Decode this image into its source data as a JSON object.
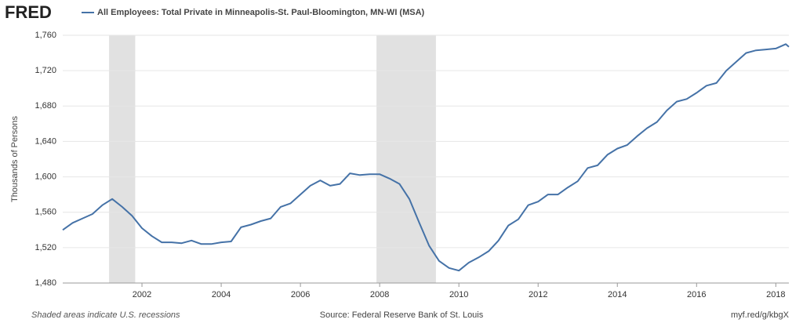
{
  "chart_data": {
    "type": "line",
    "logo": "FRED",
    "title": "All Employees: Total Private in Minneapolis-St. Paul-Bloomington, MN-WI (MSA)",
    "y_label": "Thousands of Persons",
    "note": "Shaded areas indicate U.S. recessions",
    "source": "Source: Federal Reserve Bank of St. Louis",
    "link": "myf.red/g/kbgX",
    "recessions": [
      [
        2001.17,
        2001.83
      ],
      [
        2007.92,
        2009.42
      ]
    ],
    "recession_color": "#e1e1e1",
    "xlim": [
      2000,
      2018.33
    ],
    "xticks": [
      2002,
      2004,
      2006,
      2008,
      2010,
      2012,
      2014,
      2016,
      2018
    ],
    "ylim": [
      1480,
      1760
    ],
    "yticks": [
      {
        "value": 1480,
        "label": "1,480"
      },
      {
        "value": 1520,
        "label": "1,520"
      },
      {
        "value": 1560,
        "label": "1,560"
      },
      {
        "value": 1600,
        "label": "1,600"
      },
      {
        "value": 1640,
        "label": "1,640"
      },
      {
        "value": 1680,
        "label": "1,680"
      },
      {
        "value": 1720,
        "label": "1,720"
      },
      {
        "value": 1760,
        "label": "1,760"
      }
    ],
    "grid": true,
    "x": [
      2000,
      2000.25,
      2000.5,
      2000.75,
      2001,
      2001.25,
      2001.5,
      2001.75,
      2002,
      2002.25,
      2002.5,
      2002.75,
      2003,
      2003.25,
      2003.5,
      2003.75,
      2004,
      2004.25,
      2004.5,
      2004.75,
      2005,
      2005.25,
      2005.5,
      2005.75,
      2006,
      2006.25,
      2006.5,
      2006.75,
      2007,
      2007.25,
      2007.5,
      2007.75,
      2008,
      2008.25,
      2008.5,
      2008.75,
      2009,
      2009.25,
      2009.5,
      2009.75,
      2010,
      2010.25,
      2010.5,
      2010.75,
      2011,
      2011.25,
      2011.5,
      2011.75,
      2012,
      2012.25,
      2012.5,
      2012.75,
      2013,
      2013.25,
      2013.5,
      2013.75,
      2014,
      2014.25,
      2014.5,
      2014.75,
      2015,
      2015.25,
      2015.5,
      2015.75,
      2016,
      2016.25,
      2016.5,
      2016.75,
      2017,
      2017.25,
      2017.5,
      2017.75,
      2018,
      2018.25,
      2018.33
    ],
    "series": [
      {
        "name": "All Employees: Total Private in Minneapolis-St. Paul-Bloomington, MN-WI (MSA)",
        "color": "#4572a7",
        "values": [
          1540,
          1548,
          1553,
          1558,
          1568,
          1575,
          1566,
          1556,
          1542,
          1533,
          1526,
          1526,
          1525,
          1528,
          1524,
          1524,
          1526,
          1527,
          1543,
          1546,
          1550,
          1553,
          1566,
          1570,
          1580,
          1590,
          1596,
          1590,
          1592,
          1604,
          1602,
          1603,
          1603,
          1598,
          1592,
          1575,
          1548,
          1522,
          1505,
          1497,
          1494,
          1503,
          1509,
          1516,
          1528,
          1545,
          1552,
          1568,
          1572,
          1580,
          1580,
          1588,
          1595,
          1610,
          1613,
          1625,
          1632,
          1636,
          1646,
          1655,
          1662,
          1675,
          1685,
          1688,
          1695,
          1703,
          1706,
          1720,
          1730,
          1740,
          1743,
          1744,
          1745,
          1750,
          1747
        ]
      }
    ]
  }
}
